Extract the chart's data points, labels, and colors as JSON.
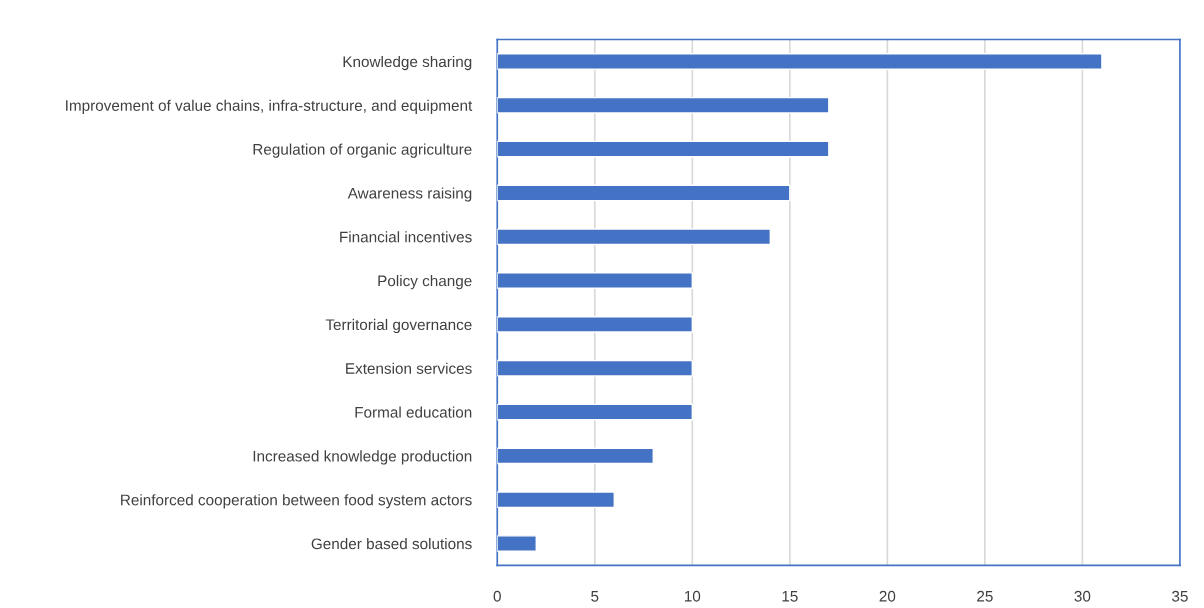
{
  "chart_data": {
    "type": "bar",
    "orientation": "horizontal",
    "categories": [
      "Knowledge sharing",
      "Improvement of value chains, infra-structure, and equipment",
      "Regulation of organic agriculture",
      "Awareness raising",
      "Financial incentives",
      "Policy change",
      "Territorial governance",
      "Extension services",
      "Formal education",
      "Increased knowledge production",
      "Reinforced cooperation between food system actors",
      "Gender based solutions"
    ],
    "values": [
      31,
      17,
      17,
      15,
      14,
      10,
      10,
      10,
      10,
      8,
      6,
      2
    ],
    "color": "#4472c4",
    "xlim": [
      0,
      35
    ],
    "xticks": [
      0,
      5,
      10,
      15,
      20,
      25,
      30,
      35
    ],
    "grid": "x"
  }
}
